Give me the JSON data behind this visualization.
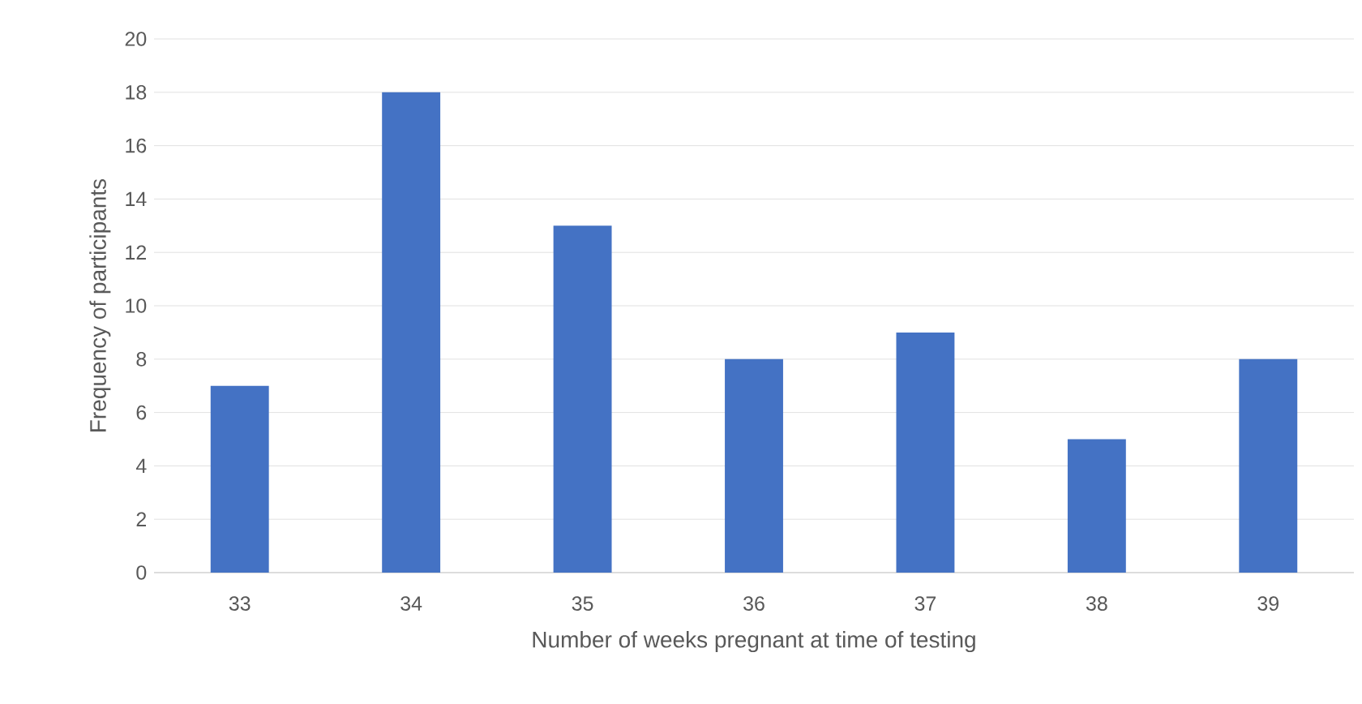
{
  "chart_data": {
    "type": "bar",
    "xlabel": "Number of weeks pregnant at time of testing",
    "ylabel": "Frequency of participants",
    "categories": [
      "33",
      "34",
      "35",
      "36",
      "37",
      "38",
      "39"
    ],
    "values": [
      7,
      18,
      13,
      8,
      9,
      5,
      8
    ],
    "color": "#4472c4",
    "ylim": [
      0,
      20
    ],
    "yticks": [
      0,
      2,
      4,
      6,
      8,
      10,
      12,
      14,
      16,
      18,
      20
    ],
    "grid": "y"
  }
}
